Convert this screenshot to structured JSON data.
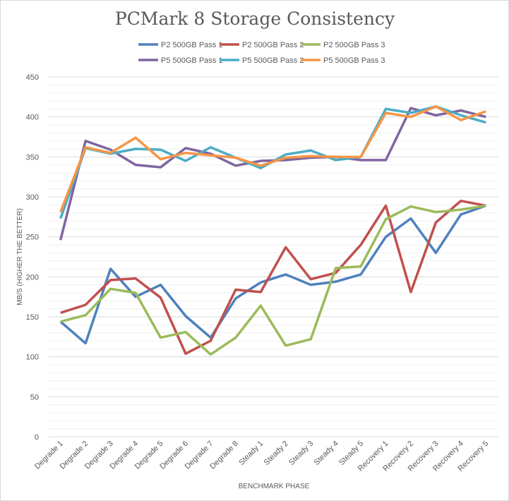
{
  "chart_data": {
    "type": "line",
    "title": "PCMark 8 Storage Consistency",
    "xlabel": "BENCHMARK PHASE",
    "ylabel": "MB/S (HIGHER THE BETTER)",
    "ylim": [
      0,
      450
    ],
    "yticks": [
      0,
      50,
      100,
      150,
      200,
      250,
      300,
      350,
      400,
      450
    ],
    "grid": true,
    "legend": "top",
    "categories": [
      "Degrade 1",
      "Degrade 2",
      "Degrade 3",
      "Degrade 4",
      "Degrade 5",
      "Degrade 6",
      "Degrade 7",
      "Degrade 8",
      "Steady 1",
      "Steady 2",
      "Steady 3",
      "Steady 4",
      "Steady 5",
      "Recovery 1",
      "Recovery 2",
      "Recovery 3",
      "Recovery 4",
      "Recovery 5"
    ],
    "series": [
      {
        "name": "P2 500GB Pass 1",
        "color": "#4f81bd",
        "values": [
          144,
          117,
          210,
          175,
          190,
          151,
          124,
          173,
          193,
          203,
          190,
          194,
          203,
          250,
          273,
          230,
          278,
          289
        ]
      },
      {
        "name": "P2 500GB Pass 2",
        "color": "#c0504d",
        "values": [
          155,
          165,
          196,
          198,
          174,
          104,
          120,
          184,
          181,
          237,
          197,
          205,
          240,
          289,
          181,
          268,
          295,
          289
        ]
      },
      {
        "name": "P2 500GB Pass 3",
        "color": "#9bbb59",
        "values": [
          144,
          152,
          185,
          180,
          124,
          131,
          103,
          124,
          164,
          114,
          122,
          211,
          213,
          272,
          288,
          281,
          284,
          289
        ]
      },
      {
        "name": "P5 500GB Pass 1",
        "color": "#8064a2",
        "values": [
          246,
          370,
          359,
          340,
          337,
          361,
          354,
          339,
          345,
          346,
          349,
          350,
          346,
          346,
          411,
          402,
          408,
          400
        ]
      },
      {
        "name": "P5 500GB Pass 2",
        "color": "#4bacc6",
        "values": [
          273,
          361,
          354,
          360,
          359,
          345,
          362,
          349,
          336,
          353,
          358,
          346,
          350,
          410,
          405,
          413,
          402,
          393
        ]
      },
      {
        "name": "P5 500GB Pass 3",
        "color": "#f79646",
        "values": [
          281,
          362,
          355,
          374,
          347,
          355,
          352,
          349,
          339,
          349,
          351,
          350,
          350,
          405,
          400,
          413,
          396,
          407
        ]
      }
    ]
  }
}
